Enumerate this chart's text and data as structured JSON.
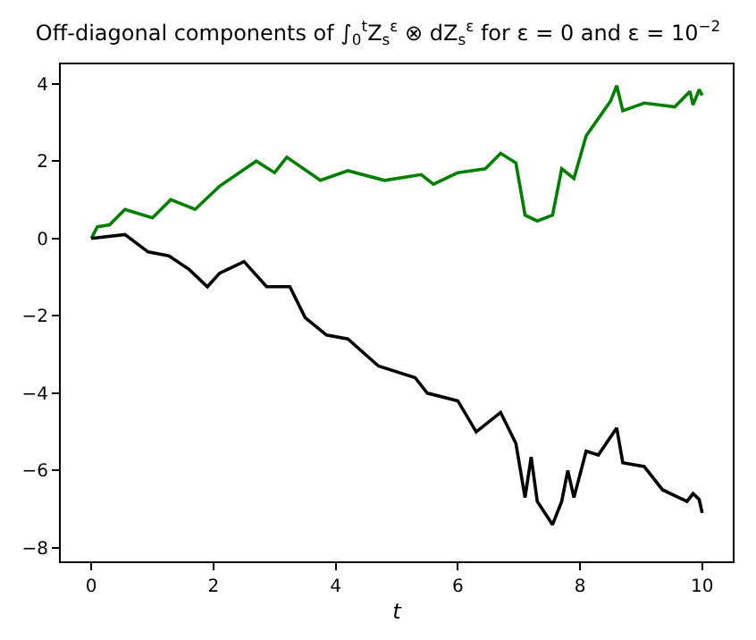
{
  "chart_data": {
    "type": "line",
    "title": "Off-diagonal components of ∫$_{0}$$^{t}$Z$_{s}$$^{ε}$ ⊗ dZ$_{s}$$^{ε}$ for ε = 0 and ε = 10$^{−2}$",
    "xlabel": "t",
    "series": [
      {
        "color": "#008000",
        "x": [
          0,
          0.1,
          0.3,
          0.55,
          1.0,
          1.3,
          1.7,
          2.1,
          2.7,
          3.0,
          3.2,
          3.75,
          4.2,
          4.8,
          5.4,
          5.6,
          6.0,
          6.45,
          6.7,
          6.95,
          7.1,
          7.3,
          7.55,
          7.7,
          7.9,
          8.1,
          8.5,
          8.6,
          8.7,
          9.05,
          9.55,
          9.8,
          9.85,
          9.95,
          10
        ],
        "values": [
          0,
          0.3,
          0.35,
          0.75,
          0.53,
          1.0,
          0.75,
          1.35,
          2.0,
          1.7,
          2.1,
          1.5,
          1.75,
          1.5,
          1.65,
          1.4,
          1.7,
          1.8,
          2.2,
          1.95,
          0.6,
          0.45,
          0.6,
          1.8,
          1.55,
          2.65,
          3.55,
          3.95,
          3.3,
          3.5,
          3.4,
          3.8,
          3.45,
          3.85,
          3.7
        ]
      },
      {
        "color": "#000000",
        "x": [
          0,
          0.55,
          0.93,
          1.27,
          1.6,
          1.9,
          2.1,
          2.5,
          2.87,
          3.25,
          3.5,
          3.85,
          4.2,
          4.7,
          5.3,
          5.5,
          6.0,
          6.3,
          6.7,
          6.95,
          7.1,
          7.2,
          7.3,
          7.55,
          7.7,
          7.8,
          7.9,
          8.1,
          8.3,
          8.6,
          8.7,
          9.05,
          9.35,
          9.75,
          9.85,
          9.95,
          10
        ],
        "values": [
          0,
          0.1,
          -0.35,
          -0.45,
          -0.8,
          -1.25,
          -0.9,
          -0.6,
          -1.25,
          -1.25,
          -2.05,
          -2.5,
          -2.6,
          -3.3,
          -3.6,
          -4.0,
          -4.2,
          -5.0,
          -4.5,
          -5.3,
          -6.7,
          -5.65,
          -6.8,
          -7.4,
          -6.8,
          -6.0,
          -6.7,
          -5.5,
          -5.6,
          -4.9,
          -5.8,
          -5.9,
          -6.5,
          -6.8,
          -6.6,
          -6.75,
          -7.1
        ]
      }
    ],
    "xlim": [
      -0.5,
      10.5
    ],
    "ylim": [
      -8.35,
      4.5
    ],
    "xticks": [
      0,
      2,
      4,
      6,
      8,
      10
    ],
    "yticks": [
      -8,
      -6,
      -4,
      -2,
      0,
      2,
      4
    ]
  }
}
